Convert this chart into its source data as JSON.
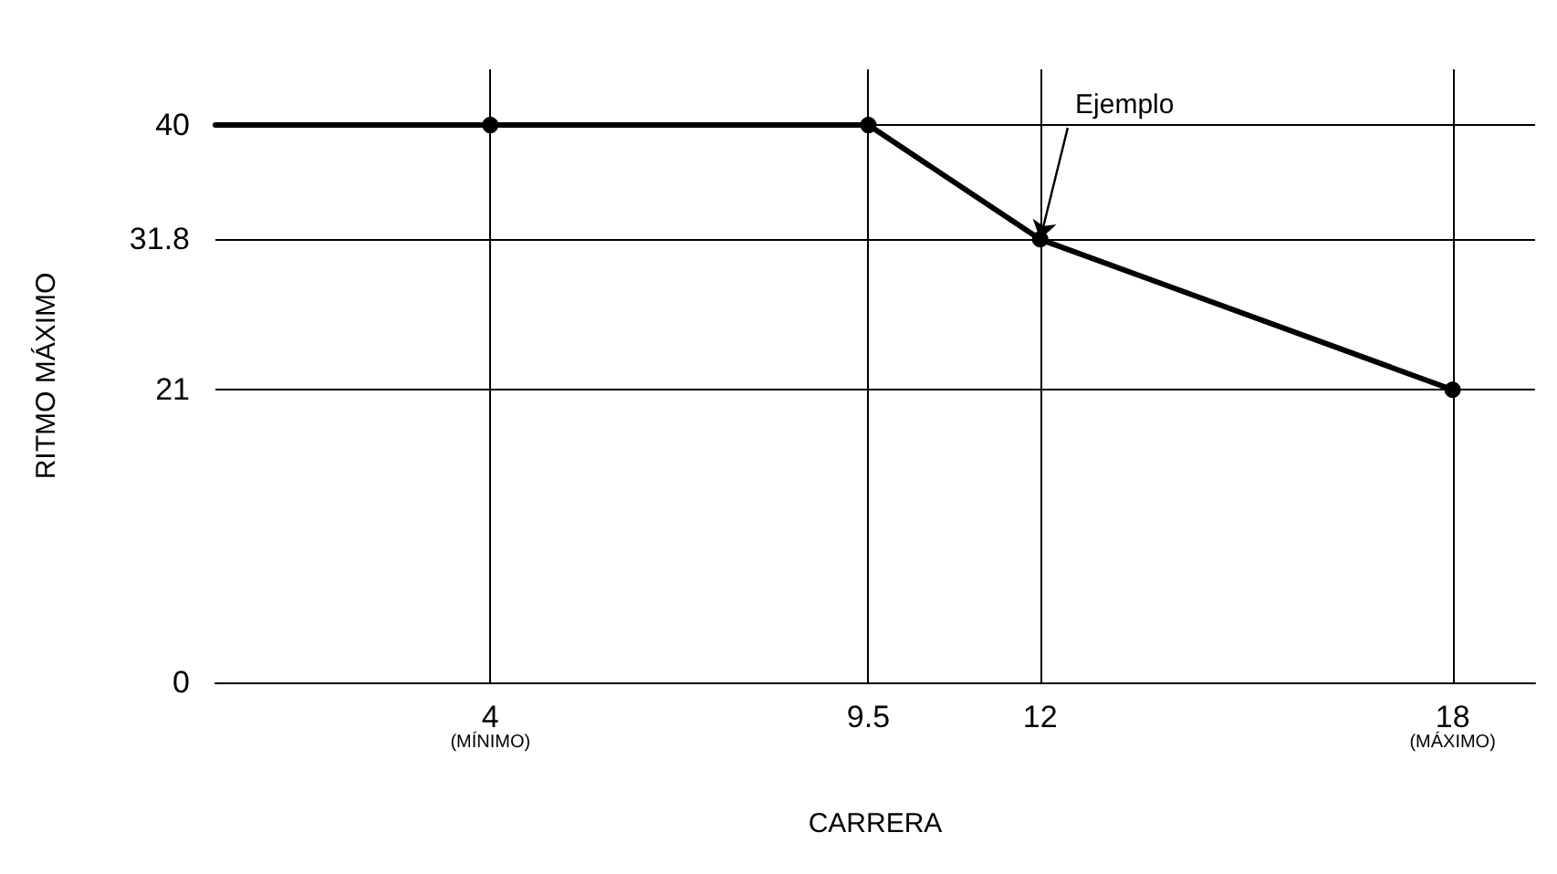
{
  "chart_data": {
    "type": "line",
    "xlabel": "CARRERA",
    "ylabel": "RITMO MÁXIMO",
    "x": [
      0,
      4,
      9.5,
      12,
      18
    ],
    "series": [
      {
        "color": "#000000",
        "values": [
          40,
          40,
          40,
          31.8,
          21
        ]
      }
    ],
    "xlim": [
      0,
      19.2
    ],
    "ylim": [
      0,
      44
    ],
    "xticks": [
      {
        "value": 4,
        "label": "4\n(MÍNIMO)"
      },
      9.5,
      12,
      {
        "value": 18,
        "label": "18\n(MÁXIMO)"
      }
    ],
    "yticks": [
      0,
      21,
      31.8,
      40
    ],
    "grid": true,
    "marker": "circle",
    "line_style": "solid",
    "annotations": [
      {
        "text": "Ejemplo",
        "x": 12,
        "y": 31.8
      }
    ]
  }
}
